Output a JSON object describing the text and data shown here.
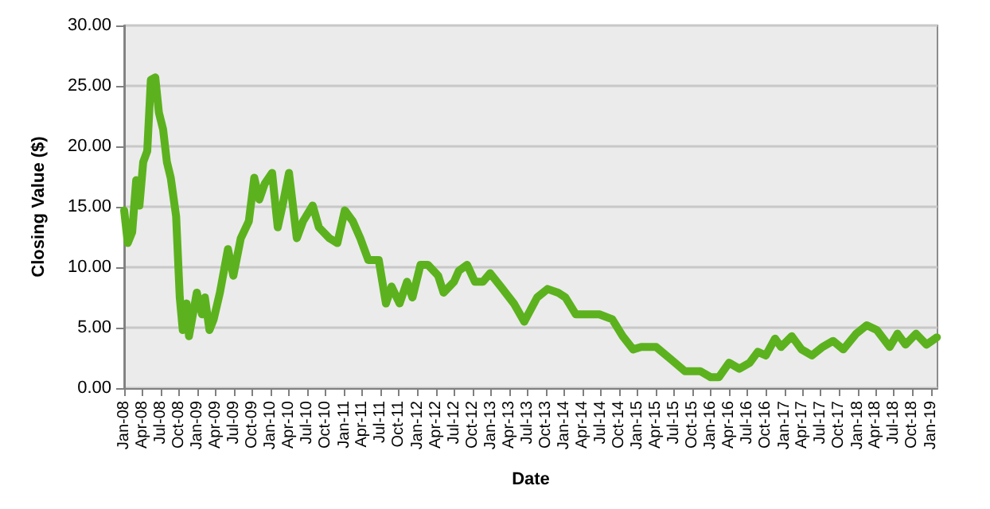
{
  "chart_data": {
    "type": "line",
    "xlabel": "Date",
    "ylabel": "Closing Value ($)",
    "x": [
      "2008-01-01",
      "2008-01-19",
      "2008-02-10",
      "2008-03-01",
      "2008-03-17",
      "2008-04-05",
      "2008-04-25",
      "2008-05-13",
      "2008-06-04",
      "2008-06-22",
      "2008-07-13",
      "2008-08-01",
      "2008-08-20",
      "2008-09-16",
      "2008-10-04",
      "2008-10-19",
      "2008-11-07",
      "2008-11-19",
      "2008-12-28",
      "2009-01-23",
      "2009-02-06",
      "2009-03-01",
      "2009-03-22",
      "2009-04-22",
      "2009-06-01",
      "2009-06-28",
      "2009-08-04",
      "2009-09-13",
      "2009-10-10",
      "2009-11-04",
      "2009-12-01",
      "2010-01-07",
      "2010-02-04",
      "2010-02-28",
      "2010-04-01",
      "2010-05-10",
      "2010-06-10",
      "2010-07-28",
      "2010-08-28",
      "2010-10-19",
      "2010-11-28",
      "2011-01-04",
      "2011-02-13",
      "2011-03-22",
      "2011-05-01",
      "2011-06-22",
      "2011-07-28",
      "2011-08-25",
      "2011-10-04",
      "2011-11-10",
      "2011-12-07",
      "2012-01-16",
      "2012-02-22",
      "2012-04-13",
      "2012-05-10",
      "2012-07-01",
      "2012-07-25",
      "2012-09-04",
      "2012-10-13",
      "2012-11-22",
      "2012-12-28",
      "2013-02-19",
      "2013-04-25",
      "2013-06-16",
      "2013-08-19",
      "2013-10-10",
      "2013-12-01",
      "2014-01-07",
      "2014-02-28",
      "2014-05-04",
      "2014-06-25",
      "2014-08-28",
      "2014-10-19",
      "2014-12-10",
      "2015-01-19",
      "2015-04-04",
      "2015-06-22",
      "2015-08-25",
      "2015-11-10",
      "2016-01-01",
      "2016-02-10",
      "2016-04-01",
      "2016-05-22",
      "2016-07-13",
      "2016-08-22",
      "2016-10-01",
      "2016-11-16",
      "2016-12-16",
      "2017-02-07",
      "2017-03-28",
      "2017-05-19",
      "2017-07-10",
      "2017-09-01",
      "2017-10-22",
      "2017-12-25",
      "2018-02-16",
      "2018-04-07",
      "2018-06-10",
      "2018-07-19",
      "2018-08-28",
      "2018-10-19",
      "2018-12-10",
      "2019-01-31"
    ],
    "series": [
      {
        "color": "#5cb21e",
        "values": [
          14.7,
          12.0,
          12.9,
          17.2,
          15.1,
          18.7,
          19.6,
          25.5,
          25.7,
          22.8,
          21.4,
          18.7,
          17.4,
          14.2,
          7.5,
          4.8,
          7.0,
          4.3,
          7.9,
          6.1,
          7.5,
          4.8,
          5.7,
          7.9,
          11.5,
          9.3,
          12.4,
          13.8,
          17.4,
          15.6,
          16.9,
          17.8,
          13.3,
          15.1,
          17.8,
          12.4,
          13.8,
          15.1,
          13.3,
          12.4,
          12.0,
          14.7,
          13.8,
          12.4,
          10.6,
          10.6,
          7.0,
          8.4,
          7.0,
          8.8,
          7.5,
          10.2,
          10.2,
          9.3,
          7.9,
          8.8,
          9.7,
          10.2,
          8.8,
          8.8,
          9.5,
          8.4,
          7.0,
          5.5,
          7.5,
          8.2,
          7.9,
          7.5,
          6.1,
          6.1,
          6.1,
          5.7,
          4.3,
          3.2,
          3.4,
          3.4,
          2.3,
          1.4,
          1.4,
          0.9,
          0.9,
          2.1,
          1.6,
          2.1,
          3.0,
          2.7,
          4.1,
          3.4,
          4.3,
          3.2,
          2.7,
          3.4,
          3.9,
          3.2,
          4.5,
          5.2,
          4.8,
          3.4,
          4.5,
          3.6,
          4.5,
          3.6,
          4.2
        ]
      }
    ],
    "xlim": [
      "2008-01-01",
      "2019-02-03"
    ],
    "xticks": [
      {
        "value": "2008-01",
        "label": "Jan-08"
      },
      {
        "value": "2008-04",
        "label": "Apr-08"
      },
      {
        "value": "2008-07",
        "label": "Jul-08"
      },
      {
        "value": "2008-10",
        "label": "Oct-08"
      },
      {
        "value": "2009-01",
        "label": "Jan-09"
      },
      {
        "value": "2009-04",
        "label": "Apr-09"
      },
      {
        "value": "2009-07",
        "label": "Jul-09"
      },
      {
        "value": "2009-10",
        "label": "Oct-09"
      },
      {
        "value": "2010-01",
        "label": "Jan-10"
      },
      {
        "value": "2010-04",
        "label": "Apr-10"
      },
      {
        "value": "2010-07",
        "label": "Jul-10"
      },
      {
        "value": "2010-10",
        "label": "Oct-10"
      },
      {
        "value": "2011-01",
        "label": "Jan-11"
      },
      {
        "value": "2011-04",
        "label": "Apr-11"
      },
      {
        "value": "2011-07",
        "label": "Jul-11"
      },
      {
        "value": "2011-10",
        "label": "Oct-11"
      },
      {
        "value": "2012-01",
        "label": "Jan-12"
      },
      {
        "value": "2012-04",
        "label": "Apr-12"
      },
      {
        "value": "2012-07",
        "label": "Jul-12"
      },
      {
        "value": "2012-10",
        "label": "Oct-12"
      },
      {
        "value": "2013-01",
        "label": "Jan-13"
      },
      {
        "value": "2013-04",
        "label": "Apr-13"
      },
      {
        "value": "2013-07",
        "label": "Jul-13"
      },
      {
        "value": "2013-10",
        "label": "Oct-13"
      },
      {
        "value": "2014-01",
        "label": "Jan-14"
      },
      {
        "value": "2014-04",
        "label": "Apr-14"
      },
      {
        "value": "2014-07",
        "label": "Jul-14"
      },
      {
        "value": "2014-10",
        "label": "Oct-14"
      },
      {
        "value": "2015-01",
        "label": "Jan-15"
      },
      {
        "value": "2015-04",
        "label": "Apr-15"
      },
      {
        "value": "2015-07",
        "label": "Jul-15"
      },
      {
        "value": "2015-10",
        "label": "Oct-15"
      },
      {
        "value": "2016-01",
        "label": "Jan-16"
      },
      {
        "value": "2016-04",
        "label": "Apr-16"
      },
      {
        "value": "2016-07",
        "label": "Jul-16"
      },
      {
        "value": "2016-10",
        "label": "Oct-16"
      },
      {
        "value": "2017-01",
        "label": "Jan-17"
      },
      {
        "value": "2017-04",
        "label": "Apr-17"
      },
      {
        "value": "2017-07",
        "label": "Jul-17"
      },
      {
        "value": "2017-10",
        "label": "Oct-17"
      },
      {
        "value": "2018-01",
        "label": "Jan-18"
      },
      {
        "value": "2018-04",
        "label": "Apr-18"
      },
      {
        "value": "2018-07",
        "label": "Jul-18"
      },
      {
        "value": "2018-10",
        "label": "Oct-18"
      },
      {
        "value": "2019-01",
        "label": "Jan-19"
      }
    ],
    "ylim": [
      0,
      30
    ],
    "yticks": [
      {
        "value": 0,
        "label": "0.00"
      },
      {
        "value": 5,
        "label": "5.00"
      },
      {
        "value": 10,
        "label": "10.00"
      },
      {
        "value": 15,
        "label": "15.00"
      },
      {
        "value": 20,
        "label": "20.00"
      },
      {
        "value": 25,
        "label": "25.00"
      },
      {
        "value": 30,
        "label": "30.00"
      }
    ],
    "grid": "y",
    "marker": "none",
    "line_style": "solid"
  }
}
